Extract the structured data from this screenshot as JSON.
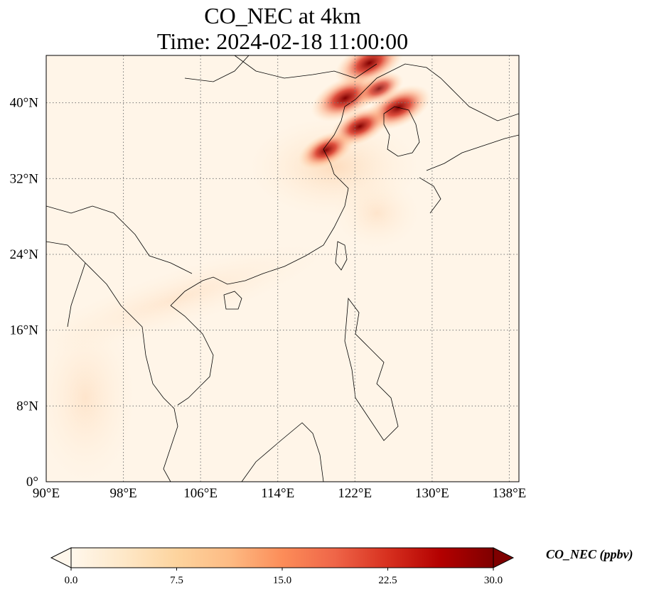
{
  "title": {
    "line1": "CO_NEC at 4km",
    "line2": "Time: 2024-02-18 11:00:00"
  },
  "map": {
    "lon_range": [
      90,
      139
    ],
    "lat_range": [
      0,
      45
    ],
    "gridlines": true,
    "gridline_style": "dotted",
    "lon_ticks": [
      {
        "value": 90,
        "label": "90°E"
      },
      {
        "value": 98,
        "label": "98°E"
      },
      {
        "value": 106,
        "label": "106°E"
      },
      {
        "value": 114,
        "label": "114°E"
      },
      {
        "value": 122,
        "label": "122°E"
      },
      {
        "value": 130,
        "label": "130°E"
      },
      {
        "value": 138,
        "label": "138°E"
      }
    ],
    "lat_ticks": [
      {
        "value": 0,
        "label": "0°"
      },
      {
        "value": 8,
        "label": "8°N"
      },
      {
        "value": 16,
        "label": "16°N"
      },
      {
        "value": 24,
        "label": "24°N"
      },
      {
        "value": 32,
        "label": "32°N"
      },
      {
        "value": 40,
        "label": "40°N"
      }
    ],
    "hotspots": [
      {
        "lon": 123.5,
        "lat": 44.2,
        "value": 30
      },
      {
        "lon": 121.0,
        "lat": 40.5,
        "value": 30
      },
      {
        "lon": 126.5,
        "lat": 39.5,
        "value": 28
      },
      {
        "lon": 122.5,
        "lat": 37.5,
        "value": 24
      },
      {
        "lon": 119.0,
        "lat": 35.0,
        "value": 22
      },
      {
        "lon": 124.5,
        "lat": 41.5,
        "value": 18
      }
    ]
  },
  "colorbar": {
    "label": "CO_NEC (ppbv)",
    "min": 0.0,
    "max": 30.0,
    "extend": "both",
    "colormap": "OrRd",
    "colors": [
      "#fff7ec",
      "#fee8c8",
      "#fdd49e",
      "#fdbb84",
      "#fc8d59",
      "#ef6548",
      "#d7301f",
      "#b30000",
      "#7f0000"
    ],
    "ticks": [
      {
        "value": 0.0,
        "label": "0.0"
      },
      {
        "value": 7.5,
        "label": "7.5"
      },
      {
        "value": 15.0,
        "label": "15.0"
      },
      {
        "value": 22.5,
        "label": "22.5"
      },
      {
        "value": 30.0,
        "label": "30.0"
      }
    ]
  }
}
